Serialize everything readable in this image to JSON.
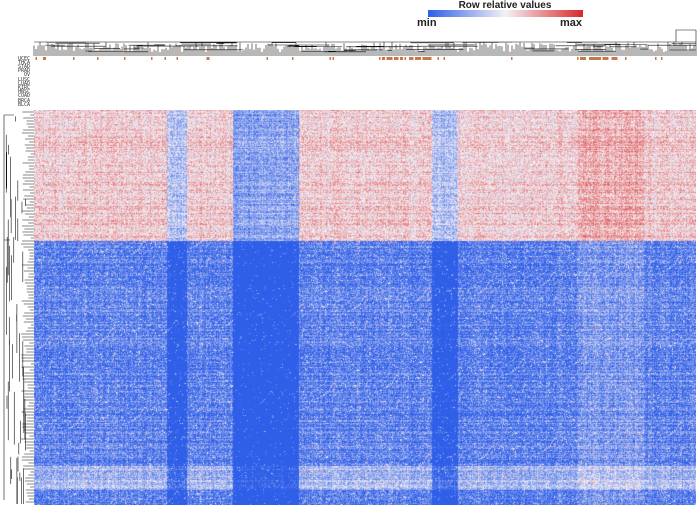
{
  "chart_data": {
    "type": "heatmap",
    "title": "",
    "xlabel": "",
    "ylabel": "",
    "legend": {
      "title": "Row relative values",
      "min_label": "min",
      "max_label": "max",
      "low_color": "#2f5fe8",
      "mid_color": "#f4f1f4",
      "high_color": "#d9282c"
    },
    "annotation_tracks": [
      {
        "name": "UCEC",
        "color": "#c8784a"
      },
      {
        "name": "THCA",
        "color": "#f2d77a"
      },
      {
        "name": "STAD",
        "color": "#c86f6f"
      },
      {
        "name": "PRAD",
        "color": "#a98ad0"
      },
      {
        "name": "OV",
        "color": "#f2a050"
      },
      {
        "name": "LUSC",
        "color": "#f0c070"
      },
      {
        "name": "LUAD",
        "color": "#e88888"
      },
      {
        "name": "KIRC",
        "color": "#5aab4a"
      },
      {
        "name": "HNSC",
        "color": "#9acb6a"
      },
      {
        "name": "COAD",
        "color": "#78a8d8"
      },
      {
        "name": "BRCA",
        "color": "#3e7fc4"
      },
      {
        "name": "BLCA",
        "color": "#a7c7e0"
      }
    ],
    "grid": false
  }
}
